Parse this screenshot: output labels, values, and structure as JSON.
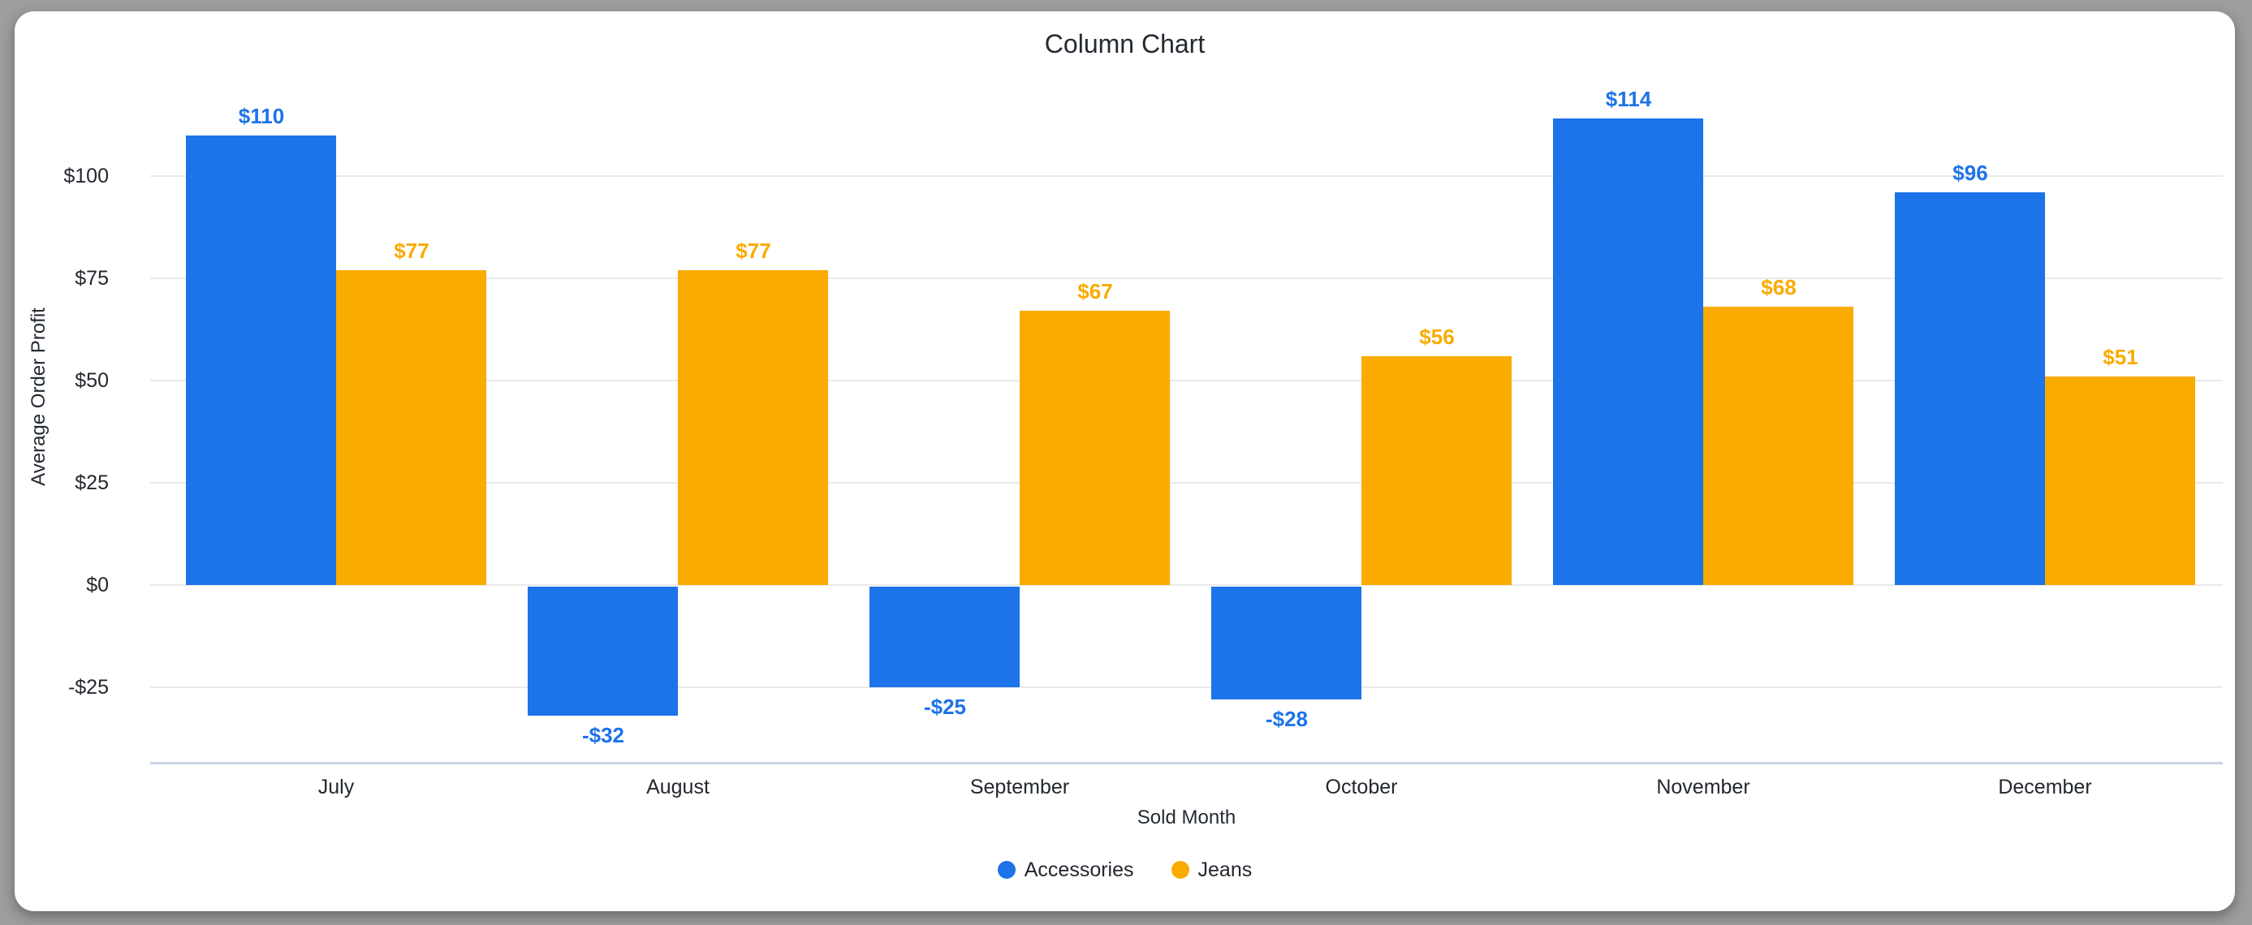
{
  "theme": {
    "background": "#9e9e9e",
    "card_background": "#ffffff",
    "grid_color": "#e9e9e9",
    "axis_line_color": "#ccd5e6",
    "text_color": "#23282e"
  },
  "chart_data": {
    "type": "bar",
    "title": "Column Chart",
    "xlabel": "Sold Month",
    "ylabel": "Average Order Profit",
    "categories": [
      "July",
      "August",
      "September",
      "October",
      "November",
      "December"
    ],
    "series": [
      {
        "name": "Accessories",
        "color": "#1d73e8",
        "values": [
          110,
          -32,
          -25,
          -28,
          114,
          96
        ],
        "value_labels": [
          "$110",
          "-$32",
          "-$25",
          "-$28",
          "$114",
          "$96"
        ]
      },
      {
        "name": "Jeans",
        "color": "#f9ab00",
        "values": [
          77,
          77,
          67,
          56,
          68,
          51
        ],
        "value_labels": [
          "$77",
          "$77",
          "$67",
          "$56",
          "$68",
          "$51"
        ]
      }
    ],
    "y_ticks": [
      {
        "value": 100,
        "label": "$100"
      },
      {
        "value": 75,
        "label": "$75"
      },
      {
        "value": 50,
        "label": "$50"
      },
      {
        "value": 25,
        "label": "$25"
      },
      {
        "value": 0,
        "label": "$0"
      },
      {
        "value": -25,
        "label": "-$25"
      }
    ],
    "ylim": [
      -44,
      122
    ],
    "grid": true,
    "legend_position": "bottom"
  }
}
